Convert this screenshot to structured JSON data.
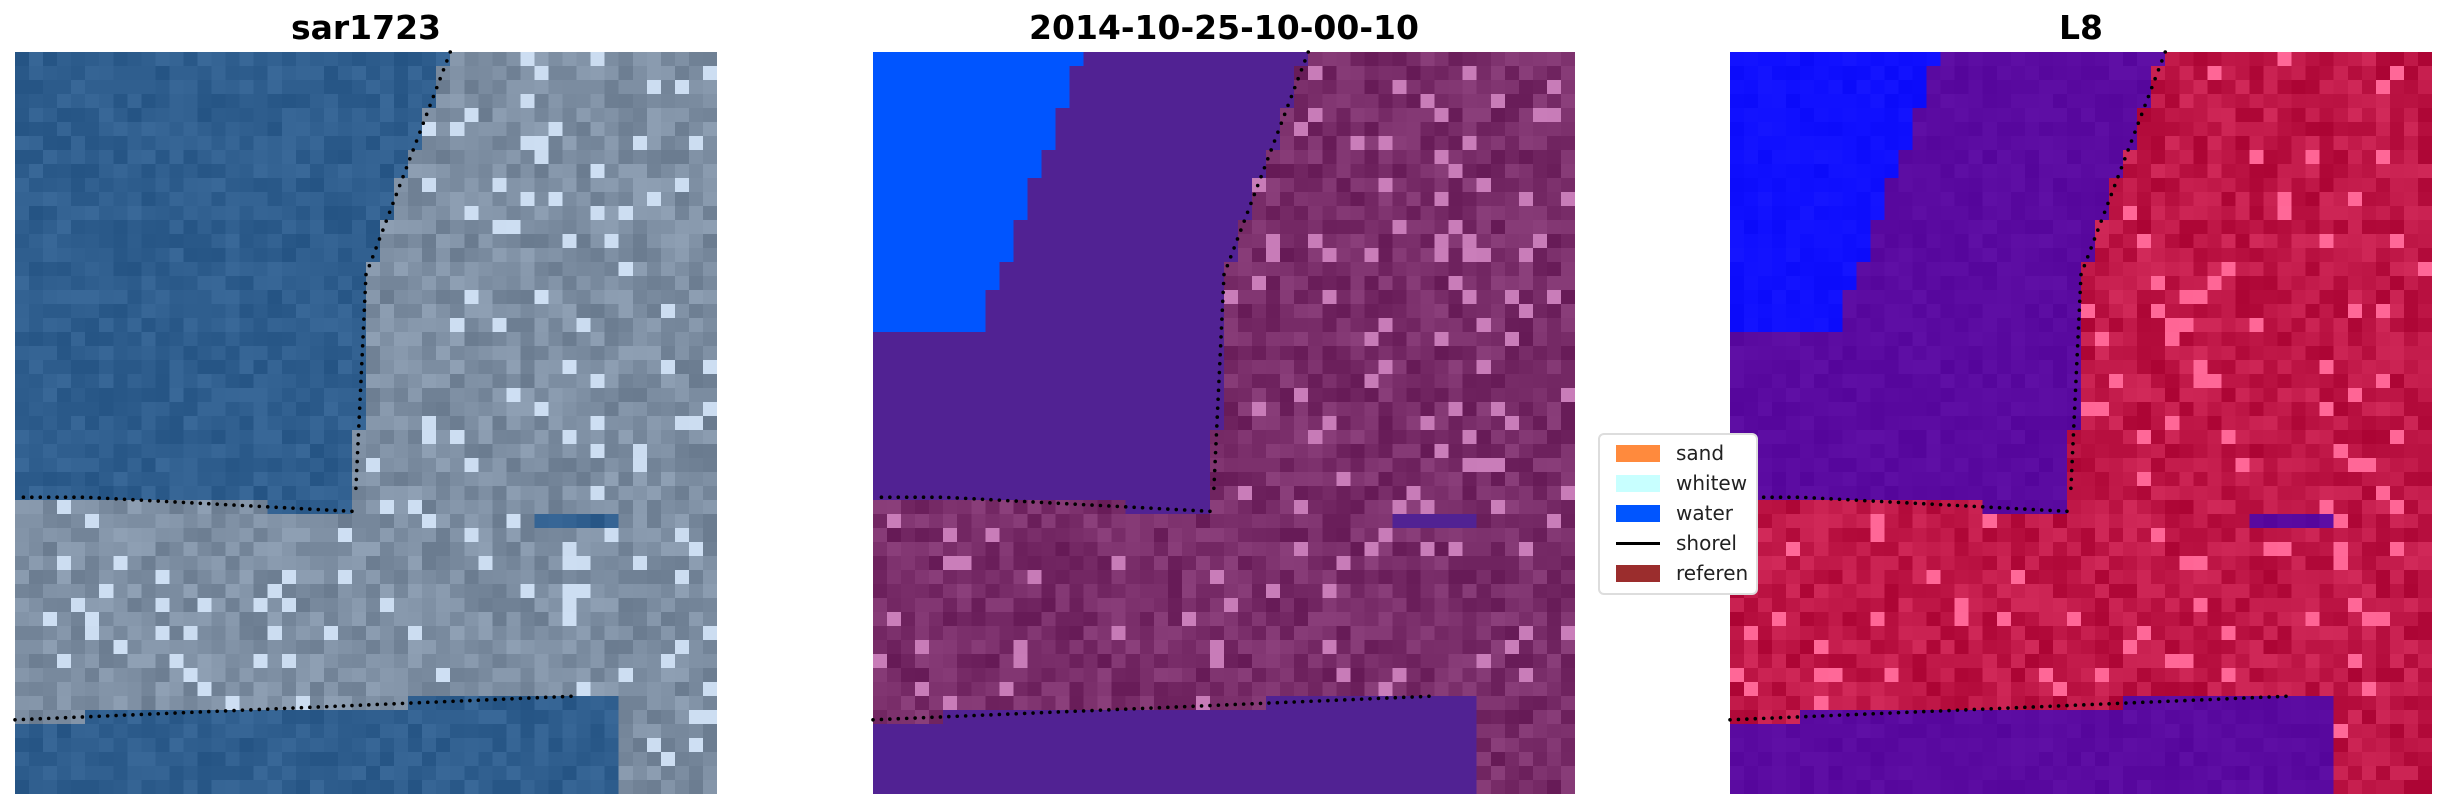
{
  "panels": [
    {
      "title": "sar1723",
      "palette": {
        "water": "#2f5e8e",
        "land": "#7e8fa3",
        "blue": "#2f5e8e"
      }
    },
    {
      "title": "2014-10-25-10-00-10",
      "palette": {
        "water": "#512293",
        "land": "#7a2e6a",
        "blue": "#0055ff"
      }
    },
    {
      "title": "L8",
      "palette": {
        "water": "#5a0aa0",
        "land": "#c01848",
        "blue": "#1010ff"
      }
    }
  ],
  "legend": {
    "items": [
      {
        "label": "sand",
        "color": "#ff8a3d",
        "kind": "patch"
      },
      {
        "label": "whitew",
        "color": "#c8ffff",
        "kind": "patch"
      },
      {
        "label": "water",
        "color": "#0055ff",
        "kind": "patch"
      },
      {
        "label": "shorel",
        "color": "#000000",
        "kind": "line"
      },
      {
        "label": "referen",
        "color": "#9b2d2d",
        "kind": "patch"
      }
    ]
  }
}
